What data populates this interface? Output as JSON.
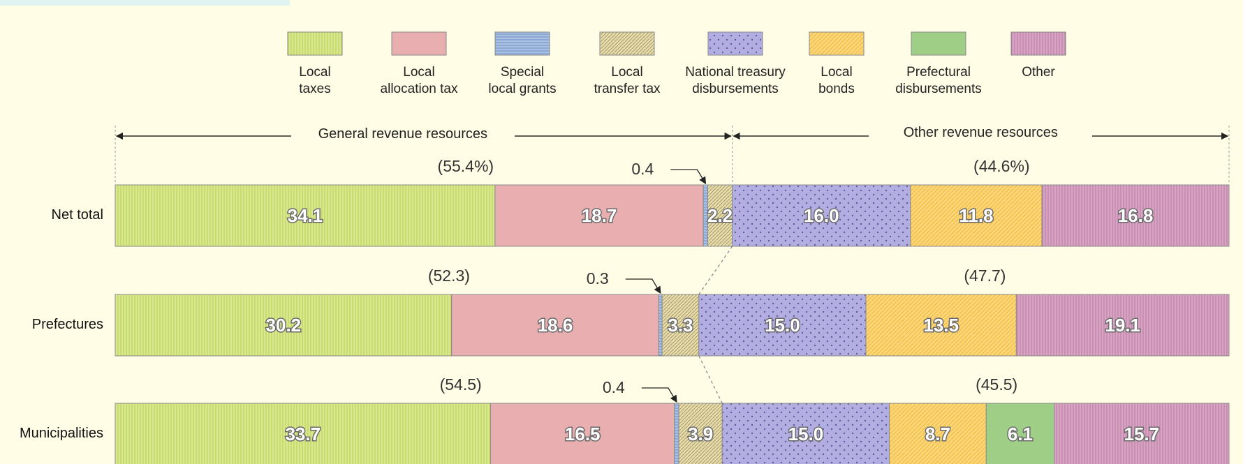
{
  "chart_data": {
    "type": "bar",
    "orientation": "horizontal",
    "stacked": true,
    "unit": "%",
    "legend_placement": "top",
    "grid": false,
    "xlim": [
      0,
      100
    ],
    "categories": [
      "Net total",
      "Prefectures",
      "Municipalities"
    ],
    "groups": [
      {
        "name": "General revenue resources",
        "shares": [
          "(55.4%)",
          "(52.3)",
          "(54.5)"
        ]
      },
      {
        "name": "Other revenue resources",
        "shares": [
          "(44.6%)",
          "(47.7)",
          "(45.5)"
        ]
      }
    ],
    "series": [
      {
        "name": "Local taxes",
        "values": [
          34.1,
          30.2,
          33.7
        ],
        "color": "#d9e88c",
        "pattern": "vlines"
      },
      {
        "name": "Local allocation tax",
        "values": [
          18.7,
          18.6,
          16.5
        ],
        "color": "#e8aeb0",
        "pattern": "solid"
      },
      {
        "name": "Special local grants",
        "values": [
          0.4,
          0.3,
          0.4
        ],
        "color": "#a9c2e4",
        "pattern": "hlines"
      },
      {
        "name": "Local transfer tax",
        "values": [
          2.2,
          3.3,
          3.9
        ],
        "color": "#d8cc98",
        "pattern": "diag"
      },
      {
        "name": "National treasury disbursements",
        "values": [
          16.0,
          15.0,
          15.0
        ],
        "color": "#b3aee2",
        "pattern": "dots"
      },
      {
        "name": "Local bonds",
        "values": [
          11.8,
          13.5,
          8.7
        ],
        "color": "#fbd77a",
        "pattern": "diag"
      },
      {
        "name": "Prefectural disbursements",
        "values": [
          0,
          0,
          6.1
        ],
        "color": "#9fcf86",
        "pattern": "solid"
      },
      {
        "name": "Other",
        "values": [
          16.8,
          19.1,
          15.7
        ],
        "color": "#d9a4c4",
        "pattern": "vlines"
      }
    ],
    "bar_labels": [
      [
        "34.1",
        "18.7",
        "",
        "2.2",
        "16.0",
        "11.8",
        "",
        "16.8"
      ],
      [
        "30.2",
        "18.6",
        "",
        "3.3",
        "15.0",
        "13.5",
        "",
        "19.1"
      ],
      [
        "33.7",
        "16.5",
        "",
        "3.9",
        "15.0",
        "8.7",
        "6.1",
        "15.7"
      ]
    ],
    "callouts": [
      "0.4",
      "0.3",
      "0.4"
    ],
    "legend_labels": [
      [
        "Local",
        "taxes"
      ],
      [
        "Local",
        "allocation tax"
      ],
      [
        "Special",
        "local grants"
      ],
      [
        "Local",
        "transfer tax"
      ],
      [
        "National treasury",
        "disbursements"
      ],
      [
        "Local",
        "bonds"
      ],
      [
        "Prefectural",
        "disbursements"
      ],
      [
        "Other"
      ]
    ]
  }
}
